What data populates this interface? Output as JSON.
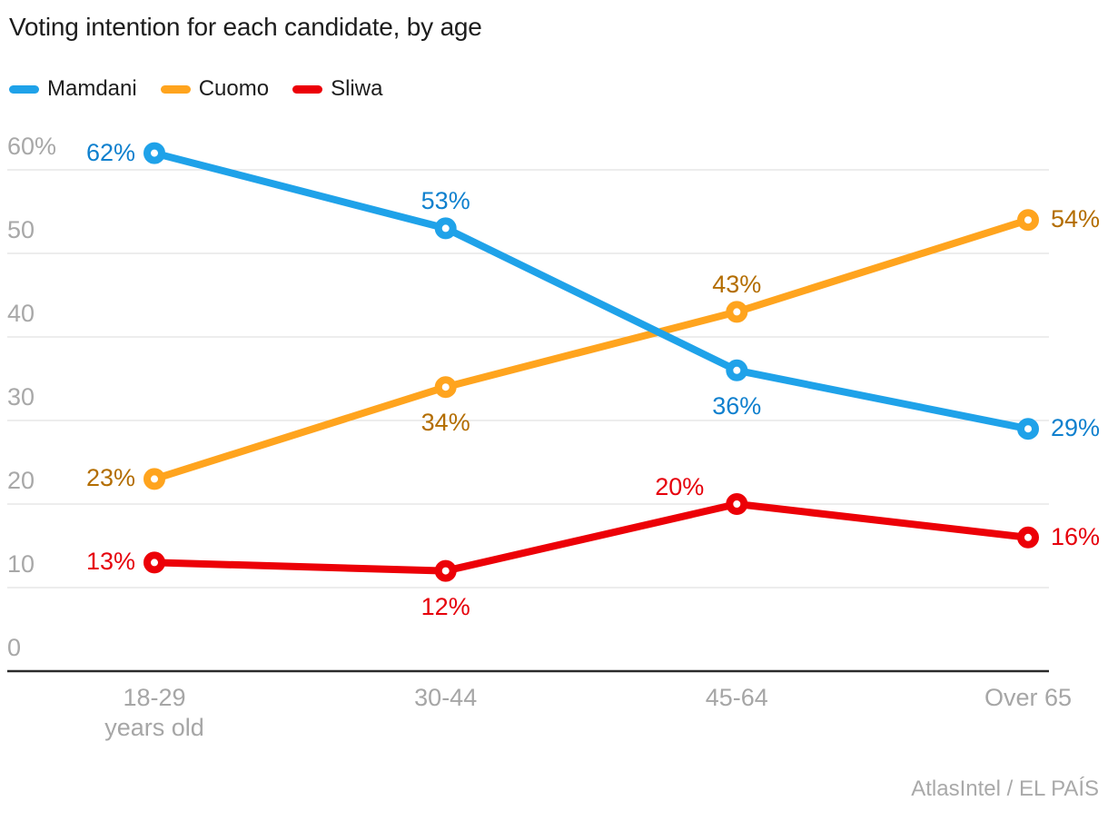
{
  "title": "Voting intention for each candidate, by age",
  "source": "AtlasIntel / EL PAÍS",
  "colors": {
    "background": "#ffffff",
    "title_text": "#1d1d1d",
    "axis_tick_text": "#a8a8a8",
    "gridline": "#e2e2e2",
    "axis_line": "#2b2b2b",
    "source_text": "#a9a9a9"
  },
  "chart_data": {
    "type": "line",
    "title": "Voting intention for each candidate, by age",
    "categories": [
      "18-29 years old",
      "30-44",
      "45-64",
      "Over 65"
    ],
    "category_display_lines": [
      [
        "18-29",
        "years old"
      ],
      [
        "30-44"
      ],
      [
        "45-64"
      ],
      [
        "Over 65"
      ]
    ],
    "series": [
      {
        "name": "Mamdani",
        "color": "#1FA2E9",
        "label_color": "#0F80CE",
        "values": [
          62,
          53,
          36,
          29
        ],
        "point_labels": [
          "62%",
          "53%",
          "36%",
          "29%"
        ],
        "label_positions": [
          "left",
          "above",
          "below",
          "right"
        ]
      },
      {
        "name": "Cuomo",
        "color": "#FFA41E",
        "label_color": "#B36D00",
        "values": [
          23,
          34,
          43,
          54
        ],
        "point_labels": [
          "23%",
          "34%",
          "43%",
          "54%"
        ],
        "label_positions": [
          "left",
          "below",
          "above",
          "right"
        ]
      },
      {
        "name": "Sliwa",
        "color": "#EC0007",
        "label_color": "#E6000B",
        "values": [
          13,
          12,
          20,
          16
        ],
        "point_labels": [
          "13%",
          "12%",
          "20%",
          "16%"
        ],
        "label_positions": [
          "left",
          "below",
          "above-left",
          "right"
        ]
      }
    ],
    "y_axis": {
      "ticks": [
        0,
        10,
        20,
        30,
        40,
        50,
        60
      ],
      "tick_labels": [
        "0",
        "10",
        "20",
        "30",
        "40",
        "50",
        "60%"
      ],
      "range": [
        0,
        60
      ]
    },
    "legend_position": "top-left",
    "grid": "horizontal",
    "draw_order": [
      "Cuomo",
      "Sliwa",
      "Mamdani"
    ],
    "source": "AtlasIntel / EL PAÍS"
  }
}
